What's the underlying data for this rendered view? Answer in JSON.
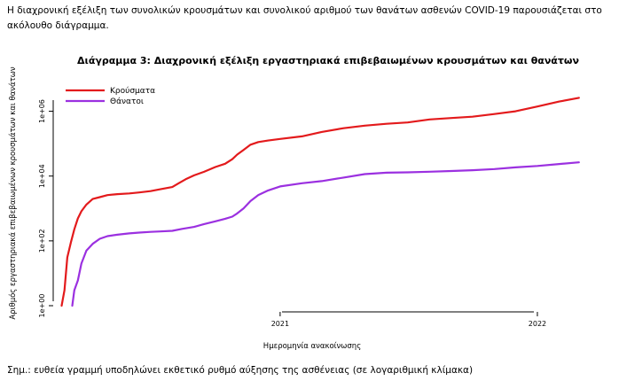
{
  "intro_text": "Η διαχρονική εξέλιξη των συνολικών κρουσμάτων και συνολικού αριθμού των θανάτων ασθενών COVID-19 παρουσιάζεται στο ακόλουθο διάγραμμα.",
  "note_text": "Σημ.: ευθεία γραμμή υποδηλώνει εκθετικό ρυθμό αύξησης της ασθένειας (σε λογαριθμική κλίμακα)",
  "chart_data": {
    "type": "line",
    "title": "Διάγραμμα 3: Διαχρονική εξέλιξη εργαστηριακά επιβεβαιωμένων κρουσμάτων και θανάτων",
    "xlabel": "Ημερομηνία ανακοίνωσης",
    "ylabel": "Αριθμός εργαστηριακά επιβεβαιωμένων κρουσμάτων και θανάτων",
    "x_scale": "date",
    "y_scale": "log10",
    "xlim": [
      "2020-02-14",
      "2022-03-10"
    ],
    "ylim": [
      1,
      5000000
    ],
    "x_ticks": [
      {
        "date": "2021-01-01",
        "label": "2021"
      },
      {
        "date": "2022-01-01",
        "label": "2022"
      }
    ],
    "y_ticks": [
      {
        "value": 1,
        "label": "1e+00"
      },
      {
        "value": 100,
        "label": "1e+02"
      },
      {
        "value": 10000,
        "label": "1e+04"
      },
      {
        "value": 1000000,
        "label": "1e+06"
      }
    ],
    "grid": false,
    "legend_position": "top-left",
    "series": [
      {
        "name": "Κρούσματα",
        "color": "#e31a1c",
        "points": [
          [
            "2020-02-26",
            1
          ],
          [
            "2020-03-01",
            3
          ],
          [
            "2020-03-05",
            31
          ],
          [
            "2020-03-10",
            89
          ],
          [
            "2020-03-15",
            228
          ],
          [
            "2020-03-20",
            495
          ],
          [
            "2020-03-25",
            821
          ],
          [
            "2020-04-01",
            1314
          ],
          [
            "2020-04-10",
            1955
          ],
          [
            "2020-04-20",
            2235
          ],
          [
            "2020-05-01",
            2591
          ],
          [
            "2020-05-15",
            2770
          ],
          [
            "2020-06-01",
            2917
          ],
          [
            "2020-06-15",
            3121
          ],
          [
            "2020-07-01",
            3432
          ],
          [
            "2020-07-15",
            3910
          ],
          [
            "2020-08-01",
            4587
          ],
          [
            "2020-08-10",
            6000
          ],
          [
            "2020-08-20",
            8000
          ],
          [
            "2020-09-01",
            10500
          ],
          [
            "2020-09-15",
            13500
          ],
          [
            "2020-10-01",
            19000
          ],
          [
            "2020-10-15",
            24000
          ],
          [
            "2020-10-25",
            33000
          ],
          [
            "2020-11-01",
            46000
          ],
          [
            "2020-11-10",
            64000
          ],
          [
            "2020-11-20",
            93000
          ],
          [
            "2020-12-01",
            112000
          ],
          [
            "2020-12-15",
            125000
          ],
          [
            "2021-01-01",
            140000
          ],
          [
            "2021-02-01",
            168000
          ],
          [
            "2021-03-01",
            230000
          ],
          [
            "2021-04-01",
            300000
          ],
          [
            "2021-05-01",
            360000
          ],
          [
            "2021-06-01",
            410000
          ],
          [
            "2021-07-01",
            450000
          ],
          [
            "2021-08-01",
            560000
          ],
          [
            "2021-09-01",
            620000
          ],
          [
            "2021-10-01",
            680000
          ],
          [
            "2021-11-01",
            820000
          ],
          [
            "2021-12-01",
            1000000
          ],
          [
            "2022-01-01",
            1400000
          ],
          [
            "2022-02-01",
            2000000
          ],
          [
            "2022-03-01",
            2600000
          ]
        ]
      },
      {
        "name": "Θάνατοι",
        "color": "#9b30e0",
        "points": [
          [
            "2020-03-12",
            1
          ],
          [
            "2020-03-15",
            3
          ],
          [
            "2020-03-20",
            6
          ],
          [
            "2020-03-25",
            20
          ],
          [
            "2020-04-01",
            50
          ],
          [
            "2020-04-10",
            81
          ],
          [
            "2020-04-20",
            116
          ],
          [
            "2020-05-01",
            140
          ],
          [
            "2020-05-15",
            155
          ],
          [
            "2020-06-01",
            170
          ],
          [
            "2020-06-15",
            180
          ],
          [
            "2020-07-01",
            190
          ],
          [
            "2020-07-15",
            195
          ],
          [
            "2020-08-01",
            205
          ],
          [
            "2020-08-15",
            235
          ],
          [
            "2020-09-01",
            270
          ],
          [
            "2020-09-15",
            330
          ],
          [
            "2020-10-01",
            400
          ],
          [
            "2020-10-15",
            480
          ],
          [
            "2020-10-25",
            560
          ],
          [
            "2020-11-01",
            700
          ],
          [
            "2020-11-10",
            1000
          ],
          [
            "2020-11-20",
            1700
          ],
          [
            "2020-12-01",
            2600
          ],
          [
            "2020-12-15",
            3600
          ],
          [
            "2021-01-01",
            4800
          ],
          [
            "2021-02-01",
            6000
          ],
          [
            "2021-03-01",
            7000
          ],
          [
            "2021-04-01",
            9000
          ],
          [
            "2021-05-01",
            11500
          ],
          [
            "2021-06-01",
            12700
          ],
          [
            "2021-07-01",
            13000
          ],
          [
            "2021-08-01",
            13600
          ],
          [
            "2021-09-01",
            14300
          ],
          [
            "2021-10-01",
            15200
          ],
          [
            "2021-11-01",
            16500
          ],
          [
            "2021-12-01",
            18500
          ],
          [
            "2022-01-01",
            20500
          ],
          [
            "2022-02-01",
            23500
          ],
          [
            "2022-03-01",
            26500
          ]
        ]
      }
    ]
  }
}
